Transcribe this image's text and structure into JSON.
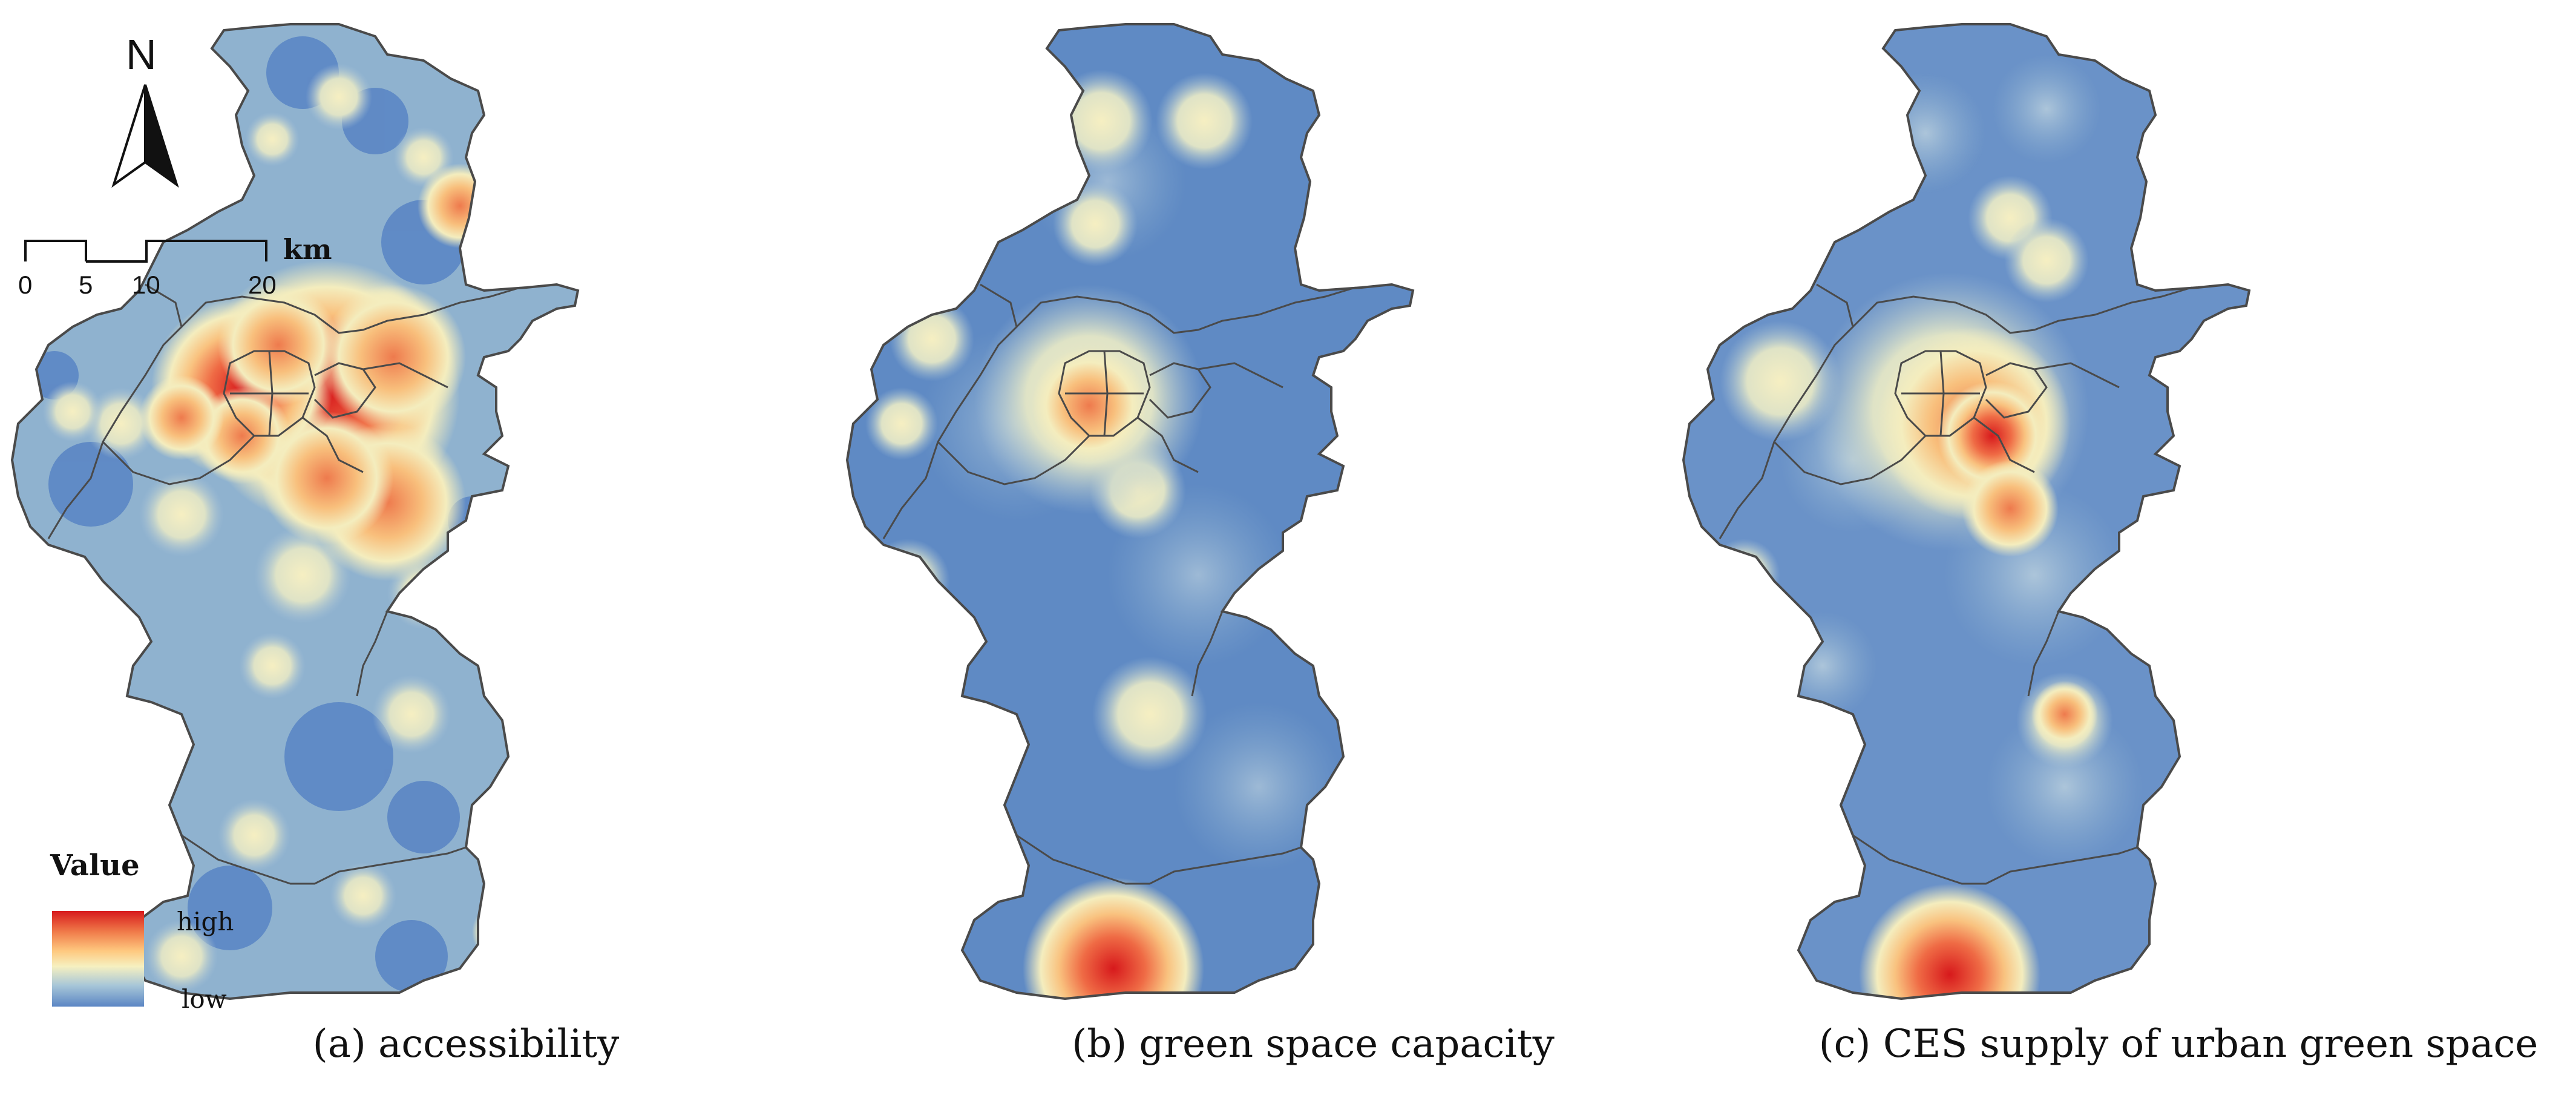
{
  "figure": {
    "panels": [
      {
        "id": "a",
        "caption": "(a) accessibility"
      },
      {
        "id": "b",
        "caption": "(b) green space capacity"
      },
      {
        "id": "c",
        "caption": "(c) CES supply of urban green space"
      }
    ]
  },
  "north_arrow": {
    "label": "N"
  },
  "scale_bar": {
    "ticks": [
      "0",
      "5",
      "10",
      "20"
    ],
    "unit": "km"
  },
  "legend": {
    "title": "Value",
    "high_label": "high",
    "low_label": "low",
    "colors": [
      "#d7191c",
      "#f07c4a",
      "#fec980",
      "#f6f0c0",
      "#a7c6d8",
      "#5b86c4"
    ]
  },
  "colors": {
    "low": "#5b86c4",
    "low_mid": "#8fb2cf",
    "mid": "#f3ecbb",
    "mid_high": "#f3a66f",
    "high": "#d7191c",
    "boundary": "#4a4a4a"
  }
}
